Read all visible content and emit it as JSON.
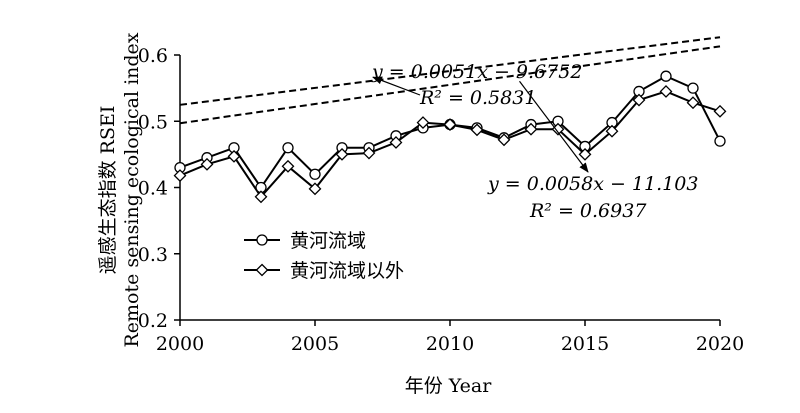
{
  "chart_data": {
    "type": "line",
    "title": "",
    "xlabel": "年份 Year",
    "ylabel_line1": "遥感生态指数 RSEI",
    "ylabel_line2": "Remote sensing ecological index",
    "xlim": [
      2000,
      2020
    ],
    "ylim": [
      0.2,
      0.6
    ],
    "x_ticks": [
      2000,
      2005,
      2010,
      2015,
      2020
    ],
    "y_ticks": [
      0.2,
      0.3,
      0.4,
      0.5,
      0.6
    ],
    "x_tick_labels": [
      "2000",
      "2005",
      "2010",
      "2015",
      "2020"
    ],
    "y_tick_labels": [
      "0.2",
      "0.3",
      "0.4",
      "0.5",
      "0.6"
    ],
    "grid": false,
    "legend_position": "bottom-left",
    "x": [
      2000,
      2001,
      2002,
      2003,
      2004,
      2005,
      2006,
      2007,
      2008,
      2009,
      2010,
      2011,
      2012,
      2013,
      2014,
      2015,
      2016,
      2017,
      2018,
      2019,
      2020
    ],
    "series": [
      {
        "name": "黄河流域",
        "marker": "circle",
        "values": [
          0.43,
          0.445,
          0.46,
          0.4,
          0.46,
          0.42,
          0.46,
          0.46,
          0.478,
          0.49,
          0.495,
          0.49,
          0.475,
          0.495,
          0.5,
          0.462,
          0.498,
          0.545,
          0.568,
          0.55,
          0.47
        ],
        "trend": {
          "slope": 0.0051,
          "intercept": -9.6752,
          "equation": "y = 0.0051x − 9.6752",
          "r2_text": "R² = 0.5831"
        }
      },
      {
        "name": "黄河流域以外",
        "marker": "diamond",
        "values": [
          0.418,
          0.435,
          0.447,
          0.386,
          0.432,
          0.398,
          0.45,
          0.452,
          0.468,
          0.498,
          0.495,
          0.487,
          0.472,
          0.488,
          0.488,
          0.45,
          0.485,
          0.532,
          0.545,
          0.528,
          0.515
        ],
        "trend": {
          "slope": 0.0058,
          "intercept": -11.103,
          "equation": "y = 0.0058x − 11.103",
          "r2_text": "R² = 0.6937"
        }
      }
    ],
    "annotations": [
      {
        "series": 0,
        "text": "y = 0.0051x − 9.6752",
        "line2": "R² = 0.5831",
        "arrow_to_x": 2007
      },
      {
        "series": 1,
        "text": "y = 0.0058x − 11.103",
        "line2": "R² = 0.6937",
        "arrow_to_x": 2012.5
      }
    ],
    "colors": {
      "line": "#000000",
      "marker_fill": "#ffffff",
      "background": "#ffffff"
    }
  }
}
